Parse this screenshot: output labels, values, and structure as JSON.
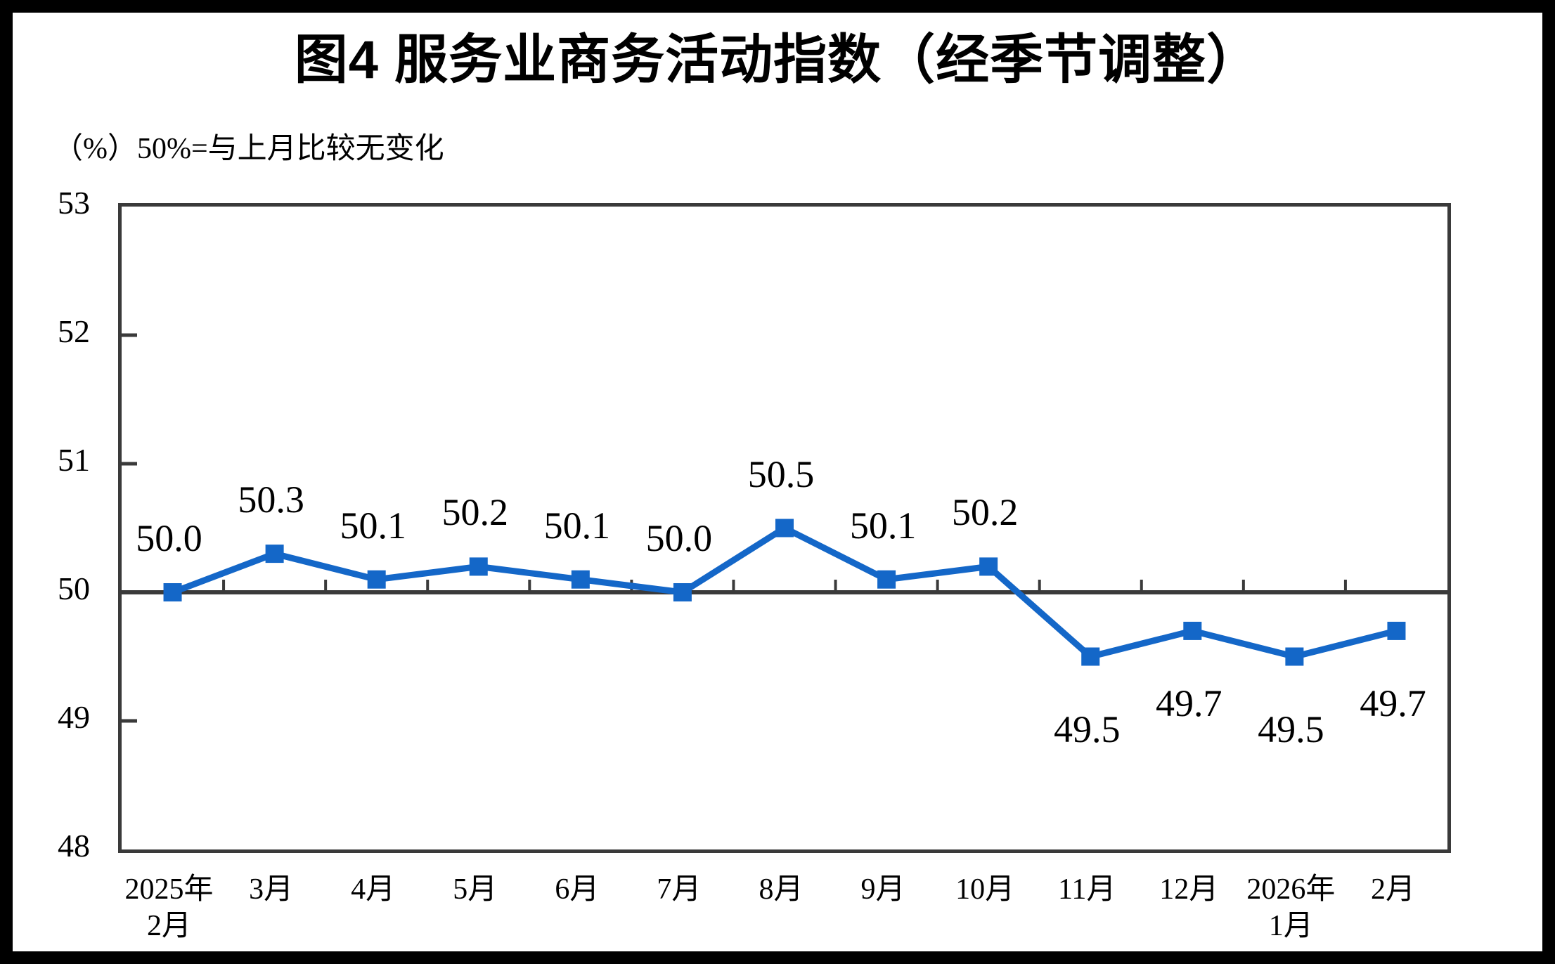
{
  "title": "图4  服务业商务活动指数（经季节调整）",
  "axis_note": "（%）50%=与上月比较无变化",
  "colors": {
    "background": "#FFFFFF",
    "frame": "#000000",
    "axis": "#3A3A3A",
    "text": "#000000",
    "line": "#1467C8"
  },
  "chart_data": {
    "type": "line",
    "title": "图4  服务业商务活动指数（经季节调整）",
    "unit_note": "（%）50%=与上月比较无变化",
    "categories": [
      "2025年2月",
      "3月",
      "4月",
      "5月",
      "6月",
      "7月",
      "8月",
      "9月",
      "10月",
      "11月",
      "12月",
      "2026年1月",
      "2月"
    ],
    "category_lines": [
      [
        "2025年",
        "2月"
      ],
      [
        "3月"
      ],
      [
        "4月"
      ],
      [
        "5月"
      ],
      [
        "6月"
      ],
      [
        "7月"
      ],
      [
        "8月"
      ],
      [
        "9月"
      ],
      [
        "10月"
      ],
      [
        "11月"
      ],
      [
        "12月"
      ],
      [
        "2026年",
        "1月"
      ],
      [
        "2月"
      ]
    ],
    "series": [
      {
        "name": "服务业商务活动指数",
        "values": [
          50.0,
          50.3,
          50.1,
          50.2,
          50.1,
          50.0,
          50.5,
          50.1,
          50.2,
          49.5,
          49.7,
          49.5,
          49.7
        ]
      }
    ],
    "data_labels": [
      "50.0",
      "50.3",
      "50.1",
      "50.2",
      "50.1",
      "50.0",
      "50.5",
      "50.1",
      "50.2",
      "49.5",
      "49.7",
      "49.5",
      "49.7"
    ],
    "ylim": [
      48,
      53
    ],
    "y_ticks": [
      53,
      52,
      51,
      50,
      49,
      48
    ],
    "baseline": 50,
    "grid": false,
    "legend": "none",
    "marker": "square",
    "xlabel": "",
    "ylabel": "%"
  }
}
